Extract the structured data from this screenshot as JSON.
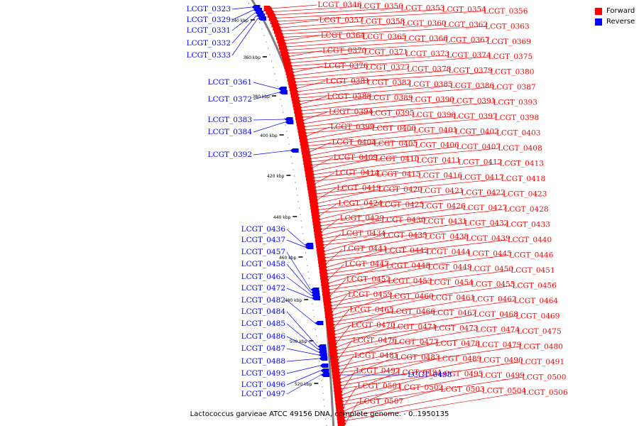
{
  "title": "Lactococcus garvieae ATCC 49156 DNA, complete genome. - 0..1950135",
  "legend": {
    "forward_label": "Forward",
    "reverse_label": "Reverse",
    "forward_color": "#ff0000",
    "reverse_color": "#0000ff"
  },
  "scale_ticks": [
    "340 kbp",
    "360 kbp",
    "380 kbp",
    "400 kbp",
    "420 kbp",
    "440 kbp",
    "460 kbp",
    "480 kbp",
    "500 kbp",
    "520 kbp"
  ],
  "forward_genes": [
    "LCGT_0346",
    "LCGT_0350",
    "LCGT_0353",
    "LCGT_0354",
    "LCGT_0356",
    "LCGT_0357",
    "LCGT_0358",
    "LCGT_0360",
    "LCGT_0362",
    "LCGT_0363",
    "LCGT_0364",
    "LCGT_0365",
    "LCGT_0366",
    "LCGT_0367",
    "LCGT_0369",
    "LCGT_0370",
    "LCGT_0371",
    "LCGT_0373",
    "LCGT_0374",
    "LCGT_0375",
    "LCGT_0376",
    "LCGT_0377",
    "LCGT_0378",
    "LCGT_0379",
    "LCGT_0380",
    "LCGT_0381",
    "LCGT_0382",
    "LCGT_0385",
    "LCGT_0386",
    "LCGT_0387",
    "LCGT_0388",
    "LCGT_0389",
    "LCGT_0390",
    "LCGT_0391",
    "LCGT_0393",
    "LCGT_0394",
    "LCGT_0395",
    "LCGT_0396",
    "LCGT_0397",
    "LCGT_0398",
    "LCGT_0399",
    "LCGT_0400",
    "LCGT_0401",
    "LCGT_0402",
    "LCGT_0403",
    "LCGT_0404",
    "LCGT_0405",
    "LCGT_0406",
    "LCGT_0407",
    "LCGT_0408",
    "LCGT_0409",
    "LCGT_0410",
    "LCGT_0411",
    "LCGT_0412",
    "LCGT_0413",
    "LCGT_0414",
    "LCGT_0415",
    "LCGT_0416",
    "LCGT_0417",
    "LCGT_0418",
    "LCGT_0419",
    "LCGT_0420",
    "LCGT_0421",
    "LCGT_0422",
    "LCGT_0423",
    "LCGT_0424",
    "LCGT_0425",
    "LCGT_0426",
    "LCGT_0427",
    "LCGT_0428",
    "LCGT_0429",
    "LCGT_0430",
    "LCGT_0431",
    "LCGT_0432",
    "LCGT_0433",
    "LCGT_0434",
    "LCGT_0435",
    "LCGT_0438",
    "LCGT_0439",
    "LCGT_0440",
    "LCGT_0441",
    "LCGT_0442",
    "LCGT_0444",
    "LCGT_0445",
    "LCGT_0446",
    "LCGT_0447",
    "LCGT_0448",
    "LCGT_0449",
    "LCGT_0450",
    "LCGT_0451",
    "LCGT_0452",
    "LCGT_0453",
    "LCGT_0454",
    "LCGT_0455",
    "LCGT_0456",
    "LCGT_0459",
    "LCGT_0460",
    "LCGT_0461",
    "LCGT_0462",
    "LCGT_0464",
    "LCGT_0465",
    "LCGT_0466",
    "LCGT_0467",
    "LCGT_0468",
    "LCGT_0469",
    "LCGT_0470",
    "LCGT_0471",
    "LCGT_0473",
    "LCGT_0474",
    "LCGT_0475",
    "LCGT_0476",
    "LCGT_0477",
    "LCGT_0478",
    "LCGT_0479",
    "LCGT_0480",
    "LCGT_0481",
    "LCGT_0483",
    "LCGT_0489",
    "LCGT_0490",
    "LCGT_0491",
    "LCGT_0492",
    "LCGT_0494",
    "LCGT_0495",
    "LCGT_0499",
    "LCGT_0500",
    "LCGT_0501",
    "LCGT_0502",
    "LCGT_0503",
    "LCGT_0504",
    "LCGT_0506",
    "LCGT_0507"
  ],
  "reverse_genes": [
    "LCGT_0323",
    "LCGT_0329",
    "LCGT_0331",
    "LCGT_0332",
    "LCGT_0333",
    "LCGT_0361",
    "LCGT_0372",
    "LCGT_0383",
    "LCGT_0384",
    "LCGT_0392",
    "LCGT_0436",
    "LCGT_0437",
    "LCGT_0457",
    "LCGT_0458",
    "LCGT_0463",
    "LCGT_0472",
    "LCGT_0482",
    "LCGT_0484",
    "LCGT_0485",
    "LCGT_0486",
    "LCGT_0487",
    "LCGT_0488",
    "LCGT_0493",
    "LCGT_0496",
    "LCGT_0497",
    "LCGT_0498"
  ]
}
